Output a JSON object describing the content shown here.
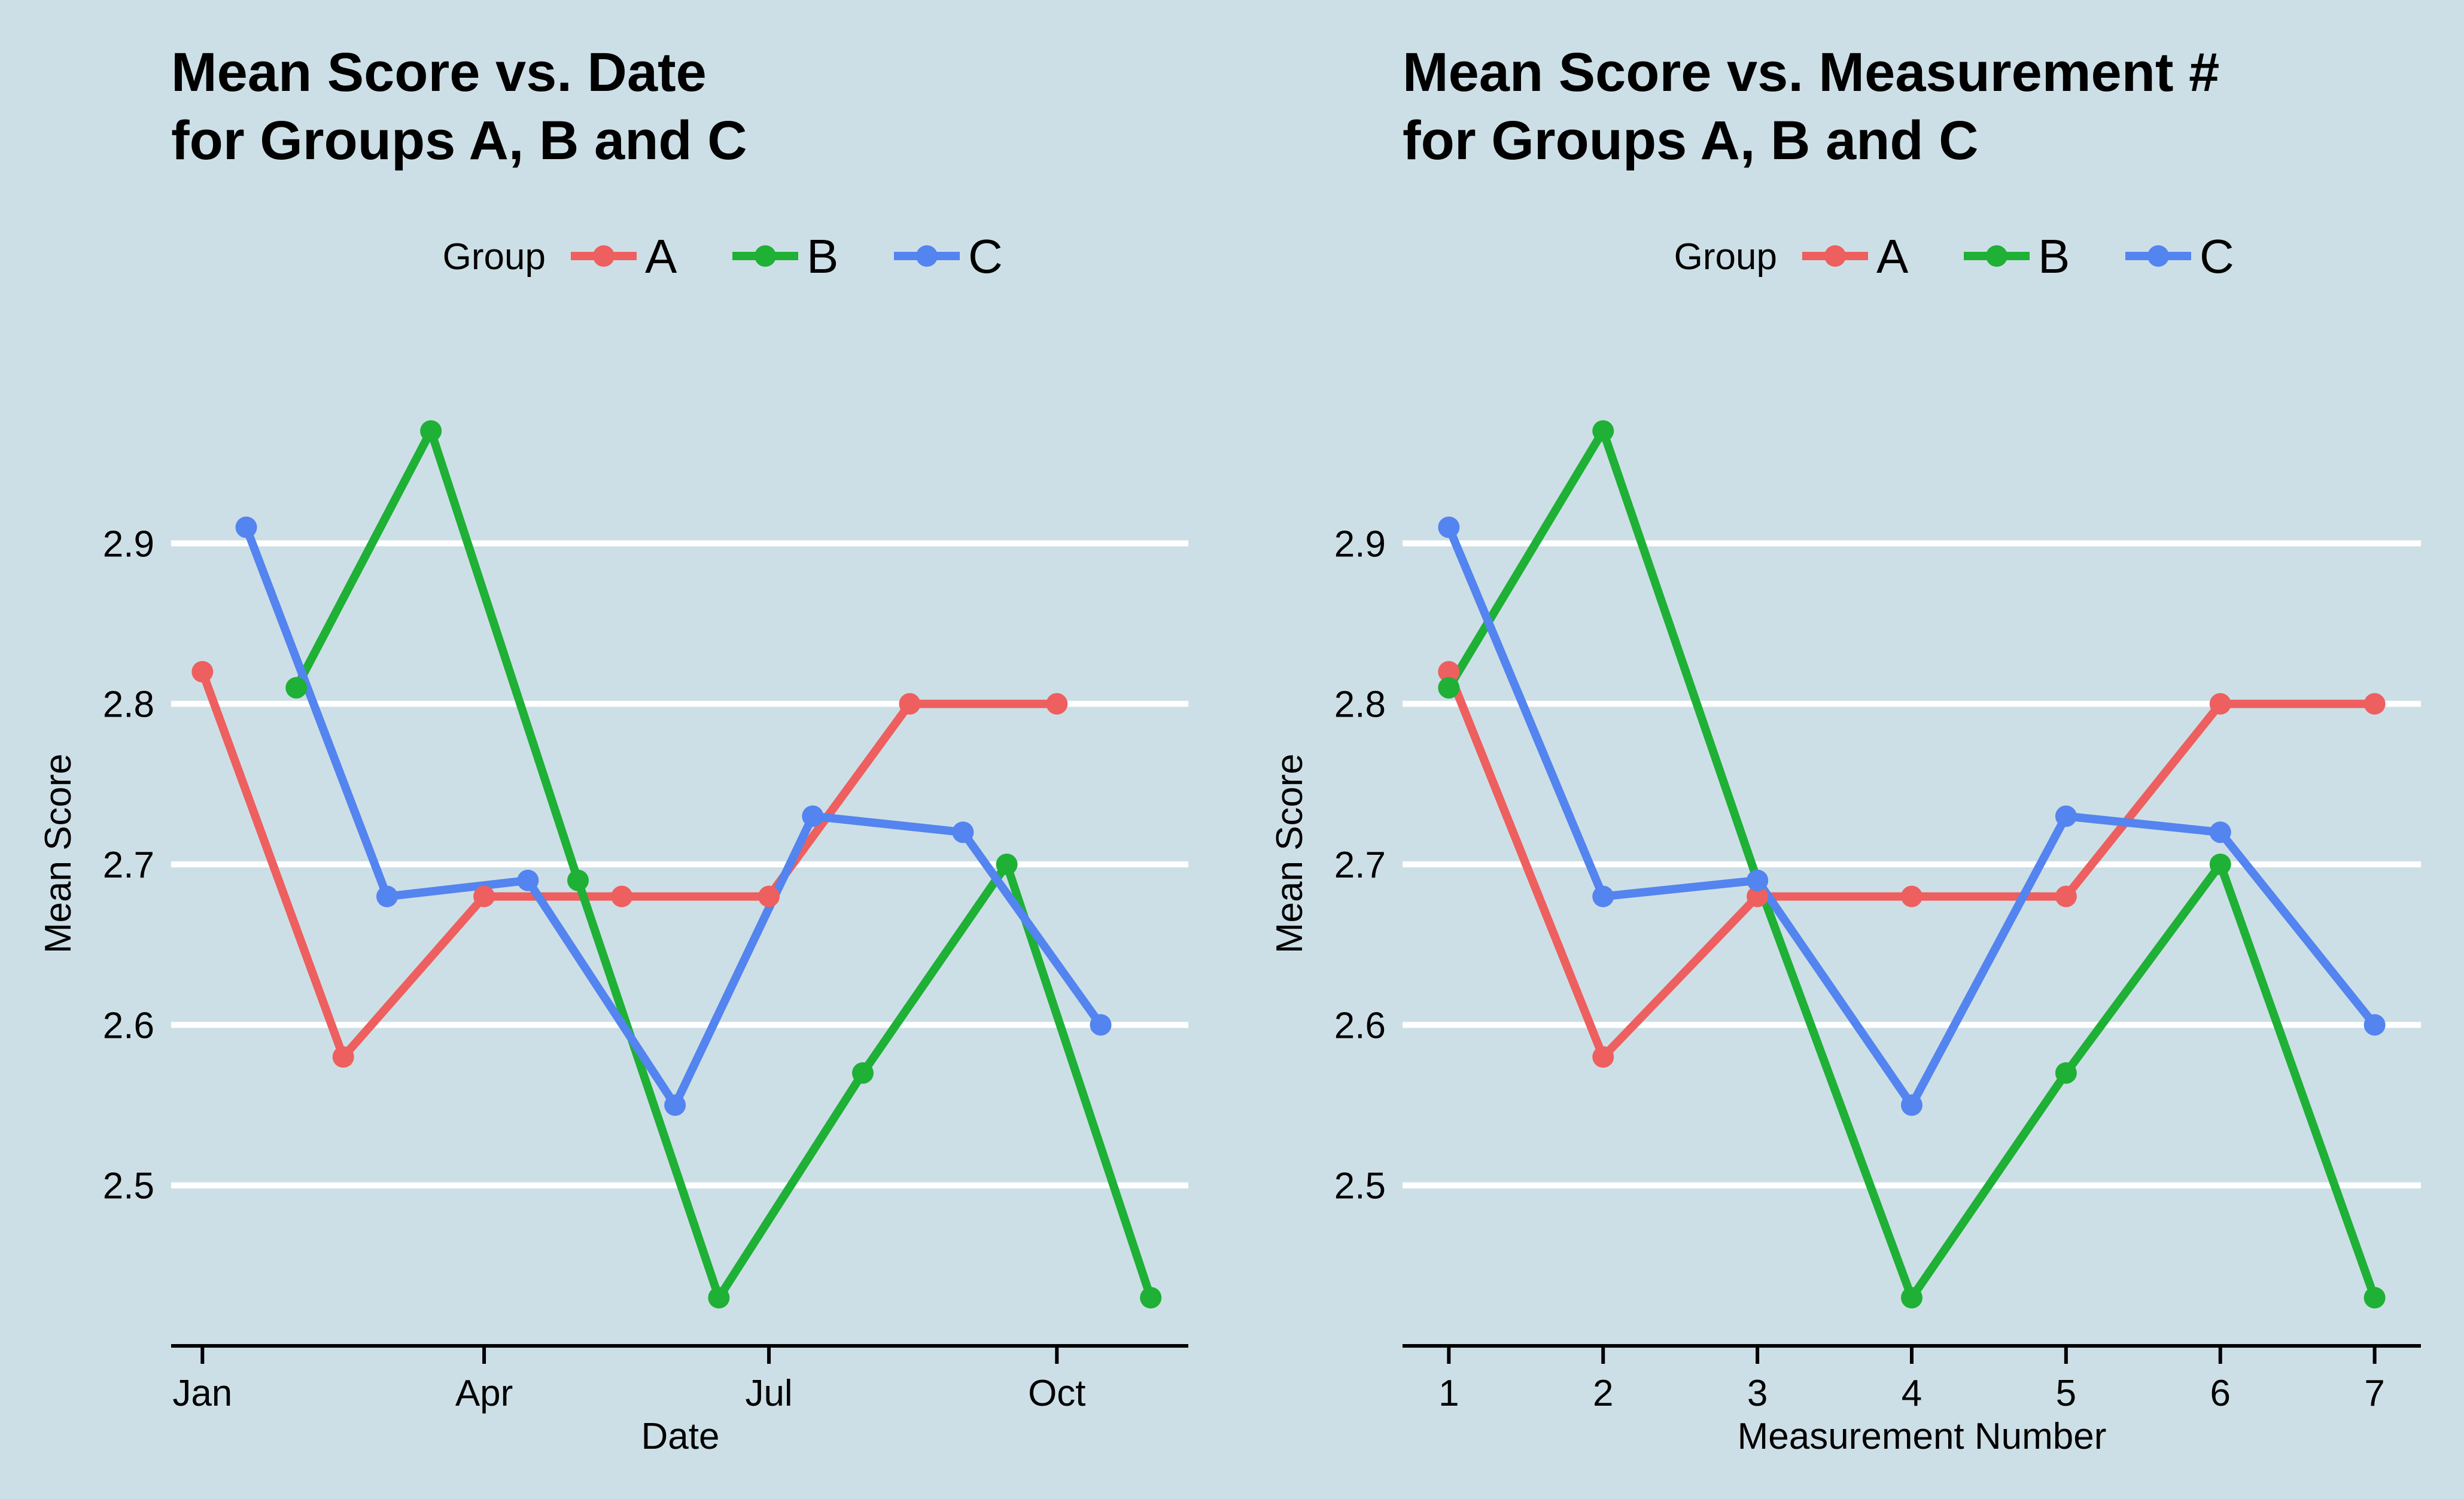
{
  "colors": {
    "background": "#cddfe6",
    "grid": "#ffffff",
    "axis": "#000000",
    "A": "#ee5f5f",
    "B": "#1fb036",
    "C": "#5384ef"
  },
  "chart_data": [
    {
      "type": "line",
      "title": [
        "Mean Score vs. Date",
        "for Groups A, B and C"
      ],
      "xlabel": "Date",
      "ylabel": "Mean Score",
      "legend": {
        "title": "Group",
        "position": "top"
      },
      "grid": {
        "horizontal": true,
        "vertical": false
      },
      "x_type": "date",
      "xlim": [
        "2022-12-22",
        "2023-11-12"
      ],
      "ylim": [
        2.4,
        3.0
      ],
      "x_ticks": [
        {
          "value": "2023-01-01",
          "label": "Jan"
        },
        {
          "value": "2023-04-01",
          "label": "Apr"
        },
        {
          "value": "2023-07-01",
          "label": "Jul"
        },
        {
          "value": "2023-10-01",
          "label": "Oct"
        }
      ],
      "y_ticks": [
        {
          "value": 2.5,
          "label": "2.5"
        },
        {
          "value": 2.6,
          "label": "2.6"
        },
        {
          "value": 2.7,
          "label": "2.7"
        },
        {
          "value": 2.8,
          "label": "2.8"
        },
        {
          "value": 2.9,
          "label": "2.9"
        }
      ],
      "series": [
        {
          "name": "A",
          "points": [
            {
              "x": "2023-01-01",
              "y": 2.82
            },
            {
              "x": "2023-02-15",
              "y": 2.58
            },
            {
              "x": "2023-04-01",
              "y": 2.68
            },
            {
              "x": "2023-05-15",
              "y": 2.68
            },
            {
              "x": "2023-07-01",
              "y": 2.68
            },
            {
              "x": "2023-08-15",
              "y": 2.8
            },
            {
              "x": "2023-10-01",
              "y": 2.8
            }
          ]
        },
        {
          "name": "B",
          "points": [
            {
              "x": "2023-01-31",
              "y": 2.81
            },
            {
              "x": "2023-03-15",
              "y": 2.97
            },
            {
              "x": "2023-05-01",
              "y": 2.69
            },
            {
              "x": "2023-06-15",
              "y": 2.43
            },
            {
              "x": "2023-07-31",
              "y": 2.57
            },
            {
              "x": "2023-09-15",
              "y": 2.7
            },
            {
              "x": "2023-10-31",
              "y": 2.43
            }
          ]
        },
        {
          "name": "C",
          "points": [
            {
              "x": "2023-01-15",
              "y": 2.91
            },
            {
              "x": "2023-03-01",
              "y": 2.68
            },
            {
              "x": "2023-04-15",
              "y": 2.69
            },
            {
              "x": "2023-06-01",
              "y": 2.55
            },
            {
              "x": "2023-07-15",
              "y": 2.73
            },
            {
              "x": "2023-09-01",
              "y": 2.72
            },
            {
              "x": "2023-10-15",
              "y": 2.6
            }
          ]
        }
      ]
    },
    {
      "type": "line",
      "title": [
        "Mean Score vs. Measurement #",
        "for Groups A, B and C"
      ],
      "xlabel": "Measurement Number",
      "ylabel": "Mean Score",
      "legend": {
        "title": "Group",
        "position": "top"
      },
      "grid": {
        "horizontal": true,
        "vertical": false
      },
      "x_type": "number",
      "xlim": [
        0.7,
        7.3
      ],
      "ylim": [
        2.4,
        3.0
      ],
      "x_ticks": [
        {
          "value": 1,
          "label": "1"
        },
        {
          "value": 2,
          "label": "2"
        },
        {
          "value": 3,
          "label": "3"
        },
        {
          "value": 4,
          "label": "4"
        },
        {
          "value": 5,
          "label": "5"
        },
        {
          "value": 6,
          "label": "6"
        },
        {
          "value": 7,
          "label": "7"
        }
      ],
      "y_ticks": [
        {
          "value": 2.5,
          "label": "2.5"
        },
        {
          "value": 2.6,
          "label": "2.6"
        },
        {
          "value": 2.7,
          "label": "2.7"
        },
        {
          "value": 2.8,
          "label": "2.8"
        },
        {
          "value": 2.9,
          "label": "2.9"
        }
      ],
      "series": [
        {
          "name": "A",
          "points": [
            {
              "x": 1,
              "y": 2.82
            },
            {
              "x": 2,
              "y": 2.58
            },
            {
              "x": 3,
              "y": 2.68
            },
            {
              "x": 4,
              "y": 2.68
            },
            {
              "x": 5,
              "y": 2.68
            },
            {
              "x": 6,
              "y": 2.8
            },
            {
              "x": 7,
              "y": 2.8
            }
          ]
        },
        {
          "name": "B",
          "points": [
            {
              "x": 1,
              "y": 2.81
            },
            {
              "x": 2,
              "y": 2.97
            },
            {
              "x": 3,
              "y": 2.69
            },
            {
              "x": 4,
              "y": 2.43
            },
            {
              "x": 5,
              "y": 2.57
            },
            {
              "x": 6,
              "y": 2.7
            },
            {
              "x": 7,
              "y": 2.43
            }
          ]
        },
        {
          "name": "C",
          "points": [
            {
              "x": 1,
              "y": 2.91
            },
            {
              "x": 2,
              "y": 2.68
            },
            {
              "x": 3,
              "y": 2.69
            },
            {
              "x": 4,
              "y": 2.55
            },
            {
              "x": 5,
              "y": 2.73
            },
            {
              "x": 6,
              "y": 2.72
            },
            {
              "x": 7,
              "y": 2.6
            }
          ]
        }
      ]
    }
  ]
}
